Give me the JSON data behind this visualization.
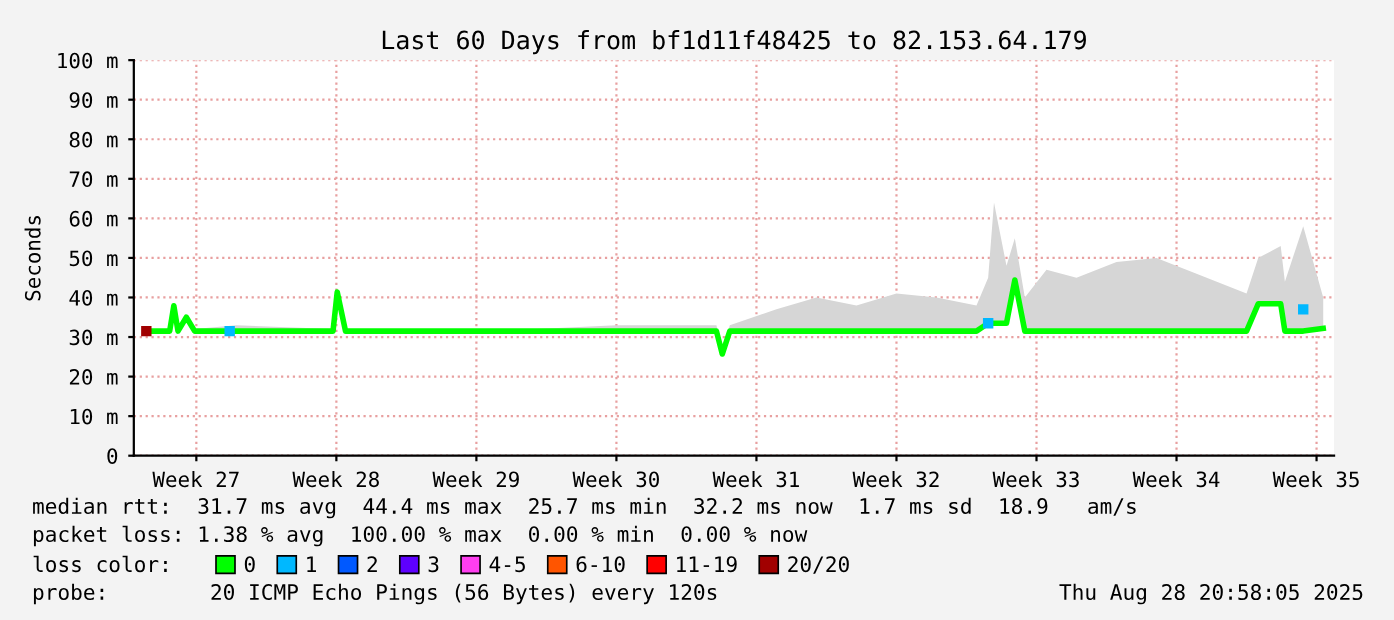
{
  "chart_data": {
    "type": "line",
    "title": "Last 60 Days from bf1d11f48425 to 82.153.64.179",
    "ylabel": "Seconds",
    "xlim": [
      "2025-06-29T21:00",
      "2025-08-28T21:00"
    ],
    "xticks": [
      {
        "value": "2025-07-03",
        "label": "Week 27"
      },
      {
        "value": "2025-07-10",
        "label": "Week 28"
      },
      {
        "value": "2025-07-17",
        "label": "Week 29"
      },
      {
        "value": "2025-07-24",
        "label": "Week 30"
      },
      {
        "value": "2025-07-31",
        "label": "Week 31"
      },
      {
        "value": "2025-08-07",
        "label": "Week 32"
      },
      {
        "value": "2025-08-14",
        "label": "Week 33"
      },
      {
        "value": "2025-08-21",
        "label": "Week 34"
      },
      {
        "value": "2025-08-28",
        "label": "Week 35"
      }
    ],
    "ylim": [
      0,
      100
    ],
    "yticks": [
      0,
      {
        "value": 10,
        "label": "10 m"
      },
      {
        "value": 20,
        "label": "20 m"
      },
      {
        "value": 30,
        "label": "30 m"
      },
      {
        "value": 40,
        "label": "40 m"
      },
      {
        "value": 50,
        "label": "50 m"
      },
      {
        "value": 60,
        "label": "60 m"
      },
      {
        "value": 70,
        "label": "70 m"
      },
      {
        "value": 80,
        "label": "80 m"
      },
      {
        "value": 90,
        "label": "90 m"
      },
      {
        "value": 100,
        "label": "100 m"
      }
    ],
    "grid": true,
    "legend": "bottom",
    "legend_title": "loss color:",
    "line_style": "solid",
    "x": [
      "2025-06-30T14:00",
      "2025-07-01T16:00",
      "2025-07-01T21:00",
      "2025-07-02T02:00",
      "2025-07-02T12:00",
      "2025-07-02T22:00",
      "2025-07-05T00:00",
      "2025-07-09T20:00",
      "2025-07-10T01:00",
      "2025-07-10T11:00",
      "2025-07-20T00:00",
      "2025-07-24T00:00",
      "2025-07-29T00:00",
      "2025-07-29T07:00",
      "2025-07-29T16:00",
      "2025-08-01T00:00",
      "2025-08-03T00:00",
      "2025-08-05T00:00",
      "2025-08-07T00:00",
      "2025-08-09T00:00",
      "2025-08-11T00:00",
      "2025-08-11T14:00",
      "2025-08-11T21:00",
      "2025-08-12T12:00",
      "2025-08-12T22:00",
      "2025-08-13T10:00",
      "2025-08-14T12:00",
      "2025-08-16T00:00",
      "2025-08-18T00:00",
      "2025-08-20T00:00",
      "2025-08-22T00:00",
      "2025-08-24T12:00",
      "2025-08-25T02:00",
      "2025-08-26T05:00",
      "2025-08-26T10:00",
      "2025-08-27T08:00",
      "2025-08-28T08:00"
    ],
    "series": [
      {
        "name": "0",
        "color": "#00ff00",
        "values": [
          31.5,
          31.5,
          37.9,
          31.5,
          35,
          31.5,
          31.5,
          31.5,
          41.4,
          31.5,
          31.5,
          31.5,
          31.5,
          25.7,
          31.5,
          31.5,
          31.5,
          31.5,
          31.5,
          31.5,
          31.5,
          33.5,
          33.5,
          33.5,
          44.4,
          31.5,
          31.5,
          31.5,
          31.5,
          31.5,
          31.5,
          31.5,
          38.4,
          38.4,
          31.5,
          31.5,
          32.2
        ],
        "lower": [
          31.5,
          31.5,
          37.9,
          31.5,
          35,
          31.5,
          31.5,
          31.5,
          41.4,
          31.5,
          31.5,
          31.5,
          31.5,
          25.7,
          31.5,
          31.5,
          31.5,
          31.5,
          31.5,
          31.5,
          31.5,
          33.5,
          33.5,
          33.5,
          44.4,
          31.5,
          31.5,
          31.5,
          31.5,
          31.5,
          31.5,
          31.5,
          38.4,
          38.4,
          31.5,
          31.5,
          32.2
        ],
        "upper": [
          31.5,
          32,
          38,
          32,
          35.5,
          32,
          33,
          32,
          41.5,
          32,
          32,
          33,
          33,
          26,
          33,
          37,
          40,
          38,
          41,
          40,
          38,
          45,
          64,
          48,
          55,
          40,
          47,
          45,
          49,
          50,
          46,
          41,
          50,
          53,
          44,
          58,
          40
        ]
      },
      {
        "name": "1",
        "type": "scatter",
        "marker": "square",
        "color": "#00b8ff",
        "x": [
          "2025-07-04T16:00",
          "2025-08-11T14:00",
          "2025-08-27T08:00"
        ],
        "values": [
          31.5,
          33.5,
          37
        ]
      },
      {
        "name": "2",
        "color": "#0059ff",
        "values": [
          null,
          null,
          null,
          null,
          null,
          null,
          null,
          null,
          null,
          null,
          null,
          null,
          null,
          null,
          null,
          null,
          null,
          null,
          null,
          null,
          null,
          null,
          null,
          null,
          null,
          null,
          null,
          null,
          null,
          null,
          null,
          null,
          null,
          null,
          null,
          null,
          null
        ]
      },
      {
        "name": "3",
        "color": "#5e00ff",
        "values": [
          null,
          null,
          null,
          null,
          null,
          null,
          null,
          null,
          null,
          null,
          null,
          null,
          null,
          null,
          null,
          null,
          null,
          null,
          null,
          null,
          null,
          null,
          null,
          null,
          null,
          null,
          null,
          null,
          null,
          null,
          null,
          null,
          null,
          null,
          null,
          null,
          null
        ]
      },
      {
        "name": "4-5",
        "color": "#ff3ef0",
        "values": [
          null,
          null,
          null,
          null,
          null,
          null,
          null,
          null,
          null,
          null,
          null,
          null,
          null,
          null,
          null,
          null,
          null,
          null,
          null,
          null,
          null,
          null,
          null,
          null,
          null,
          null,
          null,
          null,
          null,
          null,
          null,
          null,
          null,
          null,
          null,
          null,
          null
        ]
      },
      {
        "name": "6-10",
        "color": "#ff5500",
        "values": [
          null,
          null,
          null,
          null,
          null,
          null,
          null,
          null,
          null,
          null,
          null,
          null,
          null,
          null,
          null,
          null,
          null,
          null,
          null,
          null,
          null,
          null,
          null,
          null,
          null,
          null,
          null,
          null,
          null,
          null,
          null,
          null,
          null,
          null,
          null,
          null,
          null
        ]
      },
      {
        "name": "11-19",
        "color": "#ff0000",
        "values": [
          null,
          null,
          null,
          null,
          null,
          null,
          null,
          null,
          null,
          null,
          null,
          null,
          null,
          null,
          null,
          null,
          null,
          null,
          null,
          null,
          null,
          null,
          null,
          null,
          null,
          null,
          null,
          null,
          null,
          null,
          null,
          null,
          null,
          null,
          null,
          null,
          null
        ]
      },
      {
        "name": "20/20",
        "type": "scatter",
        "marker": "square",
        "color": "#a10000",
        "x": [
          "2025-06-30T12:00"
        ],
        "values": [
          31.5
        ]
      }
    ],
    "annotations": [
      "median rtt:  31.7 ms avg  44.4 ms max  25.7 ms min  32.2 ms now  1.7 ms sd  18.9   am/s",
      "packet loss: 1.38 % avg  100.00 % max  0.00 % min  0.00 % now",
      "probe:        20 ICMP Echo Pings (56 Bytes) every 120s",
      "Thu Aug 28 20:58:05 2025"
    ]
  }
}
